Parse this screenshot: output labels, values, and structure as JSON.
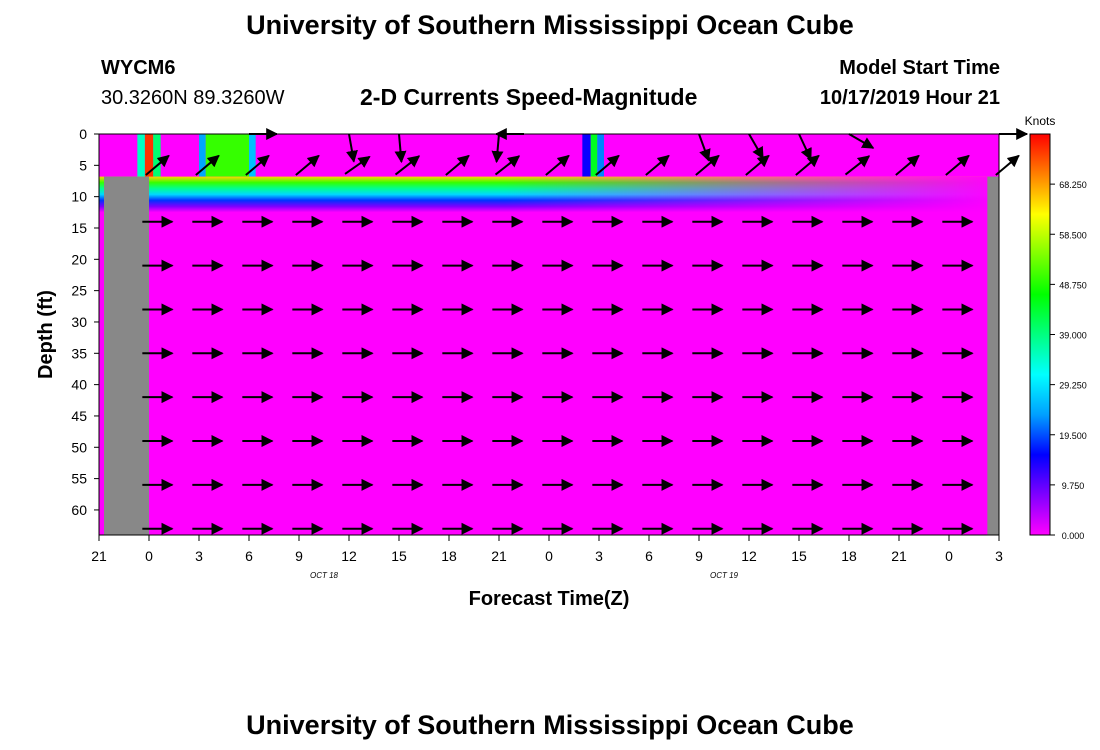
{
  "header": {
    "title": "University of Southern Mississippi Ocean Cube",
    "station_id": "WYCM6",
    "coordinates": "30.3260N 89.3260W",
    "subtitle": "2-D Currents Speed-Magnitude",
    "model_start_label": "Model Start Time",
    "model_start_value": "10/17/2019 Hour 21"
  },
  "footer": {
    "title": "University of Southern Mississippi Ocean Cube"
  },
  "chart_data": {
    "type": "heatmap",
    "title": "2-D Currents Speed-Magnitude",
    "xlabel": "Forecast Time(Z)",
    "ylabel": "Depth (ft)",
    "x_tick_labels": [
      "21",
      "0",
      "3",
      "6",
      "9",
      "12",
      "15",
      "18",
      "21",
      "0",
      "3",
      "6",
      "9",
      "12",
      "15",
      "18",
      "21",
      "0",
      "3"
    ],
    "x_date_labels": [
      {
        "label": "OCT 18",
        "tick_index": 4.5
      },
      {
        "label": "OCT 19",
        "tick_index": 12.5
      }
    ],
    "y_tick_labels": [
      "0",
      "5",
      "10",
      "15",
      "20",
      "25",
      "30",
      "35",
      "40",
      "45",
      "50",
      "55",
      "60"
    ],
    "y_ticks": [
      0,
      5,
      10,
      15,
      20,
      25,
      30,
      35,
      40,
      45,
      50,
      55,
      60
    ],
    "ylim": [
      0,
      64
    ],
    "y_inverted": true,
    "colorbar": {
      "unit": "Knots",
      "range": [
        0,
        78
      ],
      "tick_labels": [
        "68.250",
        "58.500",
        "48.750",
        "39.000",
        "29.250",
        "19.500",
        "9.750",
        "0.000"
      ],
      "tick_values": [
        68.25,
        58.5,
        48.75,
        39.0,
        29.25,
        19.5,
        9.75,
        0.0
      ],
      "colormap": [
        "#ff00ff",
        "#8000ff",
        "#0000ff",
        "#00a0ff",
        "#00ffff",
        "#00ff80",
        "#00ff00",
        "#80ff00",
        "#ffff00",
        "#ff8000",
        "#ff0000"
      ]
    },
    "surface_layer": {
      "depth_range_ft": [
        0,
        6.8
      ],
      "background_speed": 0,
      "patches": [
        {
          "x_range": [
            -0.25,
            0.25
          ],
          "speed": 75
        },
        {
          "x_range": [
            -0.7,
            -0.25
          ],
          "speed": 35
        },
        {
          "x_range": [
            0.25,
            0.7
          ],
          "speed": 40
        },
        {
          "x_range": [
            3.0,
            3.4
          ],
          "speed": 24
        },
        {
          "x_range": [
            3.4,
            6.0
          ],
          "speed": 50
        },
        {
          "x_range": [
            6.0,
            6.4
          ],
          "speed": 26
        },
        {
          "x_range": [
            26.0,
            26.5
          ],
          "speed": 15
        },
        {
          "x_range": [
            26.5,
            26.9
          ],
          "speed": 45
        },
        {
          "x_range": [
            26.9,
            27.3
          ],
          "speed": 22
        }
      ]
    },
    "transition_band": {
      "depth_range_ft": [
        6.8,
        12.5
      ],
      "description_speeds": [
        65,
        50,
        38,
        28,
        18,
        8,
        0
      ]
    },
    "no_data_columns": [
      {
        "x_range": [
          -2.7,
          0.0
        ],
        "depth_range_ft": [
          6.8,
          64
        ]
      },
      {
        "x_range": [
          50.3,
          51.0
        ],
        "depth_range_ft": [
          6.8,
          64
        ]
      }
    ],
    "vectors": {
      "surface_depth_ft": 5,
      "surface_angles_deg": [
        {
          "x": 0.5,
          "angle": 40
        },
        {
          "x": 3.5,
          "angle": 40
        },
        {
          "x": 6.5,
          "angle": 40
        },
        {
          "x": 9.5,
          "angle": 40
        },
        {
          "x": 12.5,
          "angle": 35
        },
        {
          "x": 15.5,
          "angle": 38
        },
        {
          "x": 18.5,
          "angle": 40
        },
        {
          "x": 21.5,
          "angle": 38
        },
        {
          "x": 24.5,
          "angle": 40
        },
        {
          "x": 27.5,
          "angle": 40
        },
        {
          "x": 30.5,
          "angle": 40
        },
        {
          "x": 33.5,
          "angle": 40
        },
        {
          "x": 36.5,
          "angle": 40
        },
        {
          "x": 39.5,
          "angle": 40
        },
        {
          "x": 42.5,
          "angle": 38
        },
        {
          "x": 45.5,
          "angle": 40
        },
        {
          "x": 48.5,
          "angle": 40
        },
        {
          "x": 51.5,
          "angle": 40
        }
      ],
      "top_vectors": [
        {
          "x": 6.0,
          "angle": 0
        },
        {
          "x": 12.0,
          "angle": -80
        },
        {
          "x": 15.0,
          "angle": -85
        },
        {
          "x": 21.0,
          "angle": -95
        },
        {
          "x": 22.5,
          "angle": 180
        },
        {
          "x": 33.0,
          "angle": -70
        },
        {
          "x": 36.0,
          "angle": -60
        },
        {
          "x": 39.0,
          "angle": -65
        },
        {
          "x": 42.0,
          "angle": -30
        },
        {
          "x": 51.0,
          "angle": 0
        }
      ],
      "deep_depths_ft": [
        14,
        21,
        28,
        35,
        42,
        49,
        56,
        63
      ],
      "deep_angle_deg": 0
    }
  }
}
